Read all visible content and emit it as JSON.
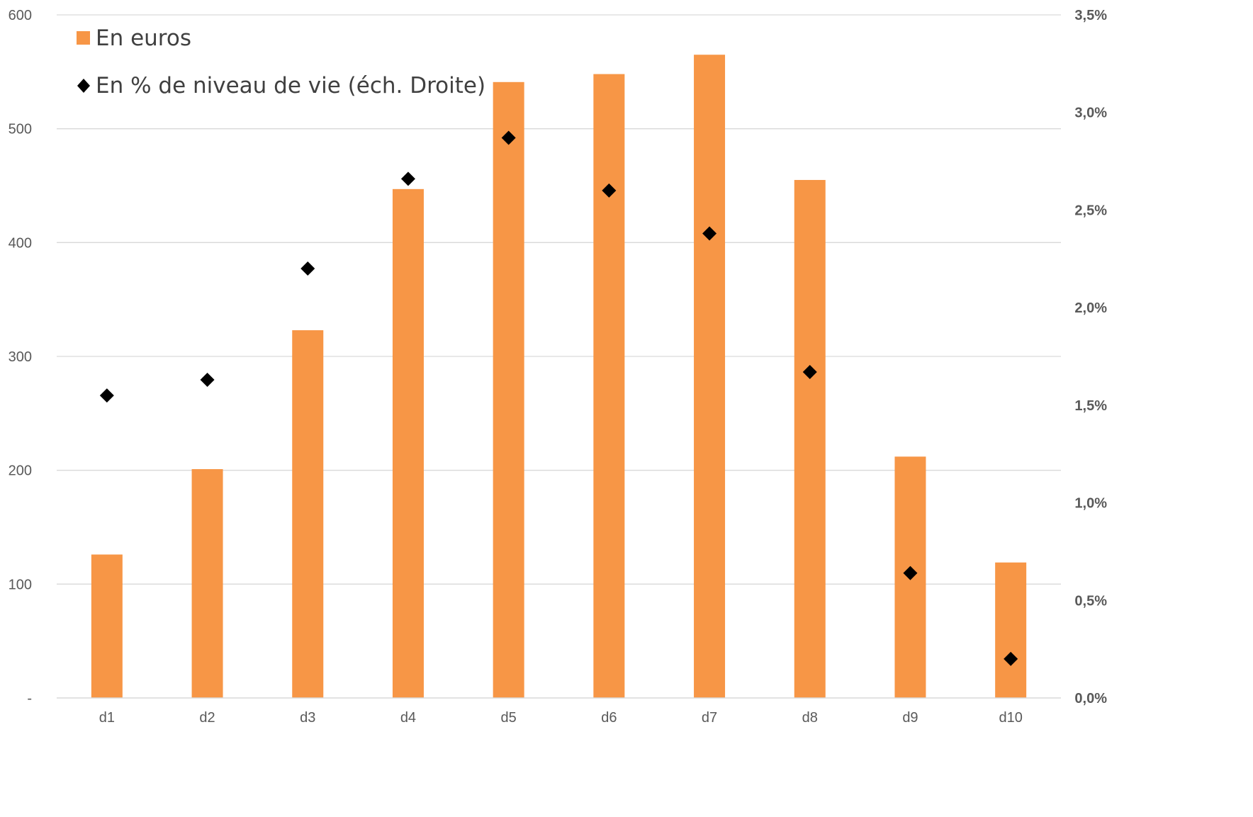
{
  "chart_data": {
    "type": "bar",
    "categories": [
      "d1",
      "d2",
      "d3",
      "d4",
      "d5",
      "d6",
      "d7",
      "d8",
      "d9",
      "d10"
    ],
    "series": [
      {
        "name": "En euros",
        "type": "bar",
        "axis": "left",
        "color": "#F79646",
        "values": [
          126,
          201,
          323,
          447,
          541,
          548,
          565,
          455,
          212,
          119
        ]
      },
      {
        "name": "En % de niveau de vie (éch. Droite)",
        "type": "scatter",
        "axis": "right",
        "marker": "diamond",
        "color": "#000000",
        "values": [
          1.55,
          1.63,
          2.2,
          2.66,
          2.87,
          2.6,
          2.38,
          1.67,
          0.64,
          0.2
        ]
      }
    ],
    "y_left": {
      "ylim": [
        0,
        600
      ],
      "ticks": [
        0,
        100,
        200,
        300,
        400,
        500,
        600
      ],
      "tick_labels": [
        "-",
        "100",
        "200",
        "300",
        "400",
        "500",
        "600"
      ]
    },
    "y_right": {
      "ylim": [
        0,
        3.5
      ],
      "ticks": [
        0,
        0.5,
        1.0,
        1.5,
        2.0,
        2.5,
        3.0,
        3.5
      ],
      "tick_labels": [
        "0,0%",
        "0,5%",
        "1,0%",
        "1,5%",
        "2,0%",
        "2,5%",
        "3,0%",
        "3,5%"
      ]
    },
    "title": "",
    "xlabel": "",
    "ylabel": "",
    "grid": true,
    "legend_position": "top-left",
    "colors": {
      "grid": "#D9D9D9",
      "tick_text": "#595959",
      "legend_text": "#404040"
    }
  }
}
